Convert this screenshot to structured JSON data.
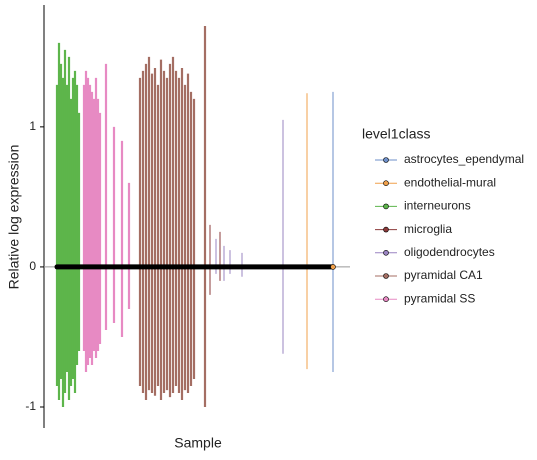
{
  "chart_data": {
    "type": "range",
    "ylabel": "Relative log expression",
    "xlabel": "Sample",
    "legend_title": "level1class",
    "ylim": [
      -1.15,
      1.87
    ],
    "yticks": [
      -1,
      0,
      1
    ],
    "xlim": [
      0,
      306
    ],
    "hline": 0,
    "series": [
      {
        "name": "astrocytes_ependymal",
        "color": "#6e8fc9",
        "x": [
          289
        ],
        "low": [
          -0.75
        ],
        "high": [
          1.25
        ]
      },
      {
        "name": "endothelial-mural",
        "color": "#f0a04b",
        "x": [
          263
        ],
        "low": [
          -0.73
        ],
        "high": [
          1.24
        ]
      },
      {
        "name": "interneurons",
        "color": "#5db54b",
        "x": [
          13,
          15,
          17,
          19,
          21,
          23,
          25,
          27,
          29,
          31,
          33,
          35
        ],
        "low": [
          -0.85,
          -0.95,
          -0.8,
          -1.0,
          -0.9,
          -0.75,
          -0.95,
          -0.85,
          -0.8,
          -0.9,
          -0.7,
          -0.6
        ],
        "high": [
          1.3,
          1.6,
          1.45,
          1.35,
          1.55,
          1.3,
          1.5,
          1.2,
          1.35,
          1.4,
          1.3,
          1.1
        ]
      },
      {
        "name": "microglia",
        "color": "#8b3a3a",
        "x": [
          166,
          176
        ],
        "low": [
          -0.2,
          -0.1
        ],
        "high": [
          0.3,
          0.25
        ]
      },
      {
        "name": "oligodendrocytes",
        "color": "#9a84c2",
        "x": [
          172,
          180,
          186,
          198,
          239
        ],
        "low": [
          -0.05,
          -0.1,
          -0.05,
          -0.07,
          -0.62
        ],
        "high": [
          0.2,
          0.15,
          0.12,
          0.1,
          1.05
        ]
      },
      {
        "name": "pyramidal CA1",
        "color": "#a46e63",
        "x": [
          96,
          99,
          102,
          105,
          108,
          111,
          114,
          117,
          120,
          123,
          126,
          129,
          132,
          135,
          138,
          141,
          144,
          147,
          150,
          161
        ],
        "low": [
          -0.85,
          -0.9,
          -0.95,
          -0.88,
          -0.9,
          -0.92,
          -0.85,
          -0.95,
          -0.9,
          -0.88,
          -0.93,
          -0.9,
          -0.85,
          -0.9,
          -0.95,
          -0.88,
          -0.9,
          -0.85,
          -0.8,
          -1.0
        ],
        "high": [
          1.35,
          1.4,
          1.45,
          1.5,
          1.38,
          1.42,
          1.3,
          1.48,
          1.4,
          1.35,
          1.45,
          1.5,
          1.4,
          1.35,
          1.42,
          1.3,
          1.38,
          1.25,
          1.2,
          1.72
        ]
      },
      {
        "name": "pyramidal SS",
        "color": "#e78ac3",
        "x": [
          40,
          42,
          44,
          46,
          48,
          50,
          52,
          54,
          56,
          62,
          70,
          78,
          85
        ],
        "low": [
          -0.6,
          -0.75,
          -0.7,
          -0.65,
          -0.7,
          -0.6,
          -0.65,
          -0.6,
          -0.55,
          -0.45,
          -0.4,
          -0.5,
          -0.3
        ],
        "high": [
          1.3,
          1.4,
          1.35,
          1.3,
          1.25,
          1.2,
          1.35,
          1.2,
          1.1,
          1.45,
          1.0,
          0.9,
          0.6
        ]
      }
    ]
  }
}
